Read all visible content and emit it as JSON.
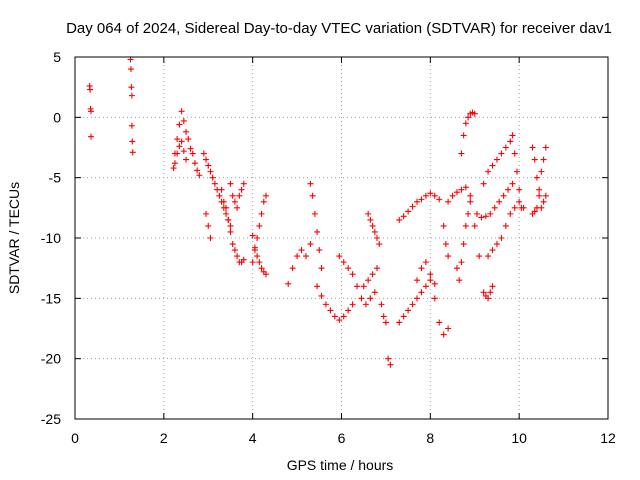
{
  "chart_data": {
    "type": "scatter",
    "title": "Day 064 of 2024, Sidereal Day-to-day VTEC variation (SDTVAR) for receiver dav1",
    "xlabel": "GPS time / hours",
    "ylabel": "SDTVAR / TECUs",
    "xlim": [
      0,
      12
    ],
    "ylim": [
      -25,
      5
    ],
    "xticks": [
      0,
      2,
      4,
      6,
      8,
      10,
      12
    ],
    "yticks": [
      5,
      0,
      -5,
      -10,
      -15,
      -20,
      -25
    ],
    "xtick_labels": [
      "0",
      "2",
      "4",
      "6",
      "8",
      "10",
      "12"
    ],
    "ytick_labels": [
      "5",
      "0",
      "-5",
      "-10",
      "-15",
      "-20",
      "-25"
    ],
    "grid": true,
    "marker": "plus",
    "color": "#ff0000",
    "series": [
      {
        "name": "s1",
        "x": [
          0.33,
          0.34,
          0.35,
          0.36,
          0.36
        ],
        "y": [
          2.6,
          2.3,
          0.7,
          0.5,
          -1.6
        ]
      },
      {
        "name": "s2",
        "x": [
          1.25,
          1.26,
          1.27,
          1.28,
          1.28,
          1.29,
          1.3
        ],
        "y": [
          4.8,
          4.0,
          2.5,
          1.8,
          -0.7,
          -2.0,
          -2.9
        ]
      },
      {
        "name": "s3",
        "x": [
          2.22,
          2.25,
          2.3,
          2.35,
          2.4,
          2.45,
          2.5,
          2.55,
          2.6,
          2.65,
          2.7,
          2.75,
          2.8
        ],
        "y": [
          -4.2,
          -3.0,
          -1.8,
          -0.6,
          0.5,
          -0.3,
          -1.2,
          -1.8,
          -2.6,
          -3.0,
          -3.8,
          -4.4,
          -4.8
        ]
      },
      {
        "name": "s4",
        "x": [
          2.25,
          2.3,
          2.35,
          2.4,
          2.45,
          2.5
        ],
        "y": [
          -3.8,
          -3.0,
          -2.4,
          -2.0,
          -2.8,
          -3.5
        ]
      },
      {
        "name": "s5",
        "x": [
          2.9,
          2.95,
          3.0,
          3.05,
          3.1,
          3.15,
          3.2,
          3.25,
          3.3,
          3.35,
          3.4,
          3.45,
          3.5
        ],
        "y": [
          -3.0,
          -3.5,
          -4.0,
          -4.5,
          -5.0,
          -5.5,
          -6.0,
          -6.5,
          -7.0,
          -7.5,
          -8.0,
          -8.5,
          -9.0
        ]
      },
      {
        "name": "s6",
        "x": [
          2.95,
          3.0,
          3.05
        ],
        "y": [
          -8.0,
          -9.0,
          -10.0
        ]
      },
      {
        "name": "s7",
        "x": [
          3.3,
          3.35,
          3.4,
          3.45,
          3.5,
          3.55,
          3.6,
          3.65,
          3.7,
          3.75,
          3.8
        ],
        "y": [
          -6.0,
          -7.0,
          -7.5,
          -8.5,
          -9.5,
          -10.5,
          -11.0,
          -11.5,
          -12.0,
          -12.0,
          -11.8
        ]
      },
      {
        "name": "s8",
        "x": [
          3.5,
          3.55,
          3.6,
          3.65,
          3.7,
          3.75,
          3.8
        ],
        "y": [
          -5.5,
          -6.5,
          -7.0,
          -7.5,
          -6.5,
          -6.0,
          -5.5
        ]
      },
      {
        "name": "s9",
        "x": [
          4.0,
          4.05,
          4.1,
          4.15,
          4.2,
          4.25,
          4.3
        ],
        "y": [
          -12.0,
          -11.0,
          -10.0,
          -9.0,
          -8.0,
          -7.0,
          -6.5
        ]
      },
      {
        "name": "s10",
        "x": [
          4.0,
          4.05,
          4.1,
          4.15,
          4.2,
          4.25,
          4.3
        ],
        "y": [
          -9.8,
          -10.8,
          -11.5,
          -12.0,
          -12.5,
          -12.8,
          -13.0
        ]
      },
      {
        "name": "s11",
        "x": [
          4.8,
          4.9,
          5.0,
          5.1,
          5.2,
          5.3
        ],
        "y": [
          -13.8,
          -12.5,
          -11.5,
          -11.0,
          -11.5,
          -10.5
        ]
      },
      {
        "name": "s12",
        "x": [
          5.3,
          5.35,
          5.4,
          5.45,
          5.5,
          5.55
        ],
        "y": [
          -5.5,
          -6.5,
          -8.0,
          -9.5,
          -11.0,
          -12.5
        ]
      },
      {
        "name": "s13",
        "x": [
          5.45,
          5.55,
          5.65,
          5.75,
          5.85,
          5.95,
          6.05,
          6.15,
          6.25
        ],
        "y": [
          -14.0,
          -14.8,
          -15.5,
          -16.0,
          -16.5,
          -16.8,
          -16.5,
          -16.0,
          -15.5
        ]
      },
      {
        "name": "s14",
        "x": [
          5.95,
          6.05,
          6.15,
          6.25,
          6.35,
          6.45,
          6.55,
          6.65,
          6.75
        ],
        "y": [
          -11.5,
          -12.0,
          -12.5,
          -13.0,
          -14.0,
          -15.0,
          -15.5,
          -15.0,
          -14.5
        ]
      },
      {
        "name": "s15",
        "x": [
          6.5,
          6.6,
          6.7,
          6.8
        ],
        "y": [
          -14.0,
          -13.5,
          -13.0,
          -12.5
        ]
      },
      {
        "name": "s16",
        "x": [
          6.6,
          6.65,
          6.7,
          6.75,
          6.8,
          6.85
        ],
        "y": [
          -8.0,
          -8.5,
          -9.0,
          -9.5,
          -10.0,
          -10.5
        ]
      },
      {
        "name": "s17",
        "x": [
          7.05,
          7.1
        ],
        "y": [
          -20.0,
          -20.5
        ]
      },
      {
        "name": "s18",
        "x": [
          6.9,
          6.95,
          7.0
        ],
        "y": [
          -15.5,
          -16.5,
          -17.0
        ]
      },
      {
        "name": "s19",
        "x": [
          7.3,
          7.4,
          7.5,
          7.6,
          7.7,
          7.8,
          7.9,
          8.0,
          8.1,
          8.2
        ],
        "y": [
          -8.5,
          -8.2,
          -7.8,
          -7.4,
          -7.0,
          -6.8,
          -6.5,
          -6.3,
          -6.5,
          -6.8
        ]
      },
      {
        "name": "s20",
        "x": [
          7.3,
          7.4,
          7.5,
          7.6,
          7.7,
          7.8,
          7.9,
          8.0,
          8.1
        ],
        "y": [
          -17.0,
          -16.5,
          -16.0,
          -15.5,
          -15.0,
          -14.5,
          -14.0,
          -13.5,
          -13.8
        ]
      },
      {
        "name": "s21",
        "x": [
          7.7,
          7.8,
          7.9,
          8.0,
          8.1,
          8.2,
          8.3,
          8.4
        ],
        "y": [
          -13.5,
          -12.5,
          -12.0,
          -13.0,
          -15.0,
          -17.0,
          -18.0,
          -17.5
        ]
      },
      {
        "name": "s22",
        "x": [
          8.3,
          8.35,
          8.4
        ],
        "y": [
          -9.0,
          -10.5,
          -11.5
        ]
      },
      {
        "name": "s23",
        "x": [
          8.4,
          8.5,
          8.6,
          8.7,
          8.8,
          8.9,
          9.0,
          9.1
        ],
        "y": [
          -7.0,
          -6.5,
          -6.2,
          -6.0,
          -5.8,
          -6.5,
          -9.0,
          -11.5
        ]
      },
      {
        "name": "s24",
        "x": [
          8.6,
          8.65,
          8.7,
          8.75,
          8.8,
          8.85,
          8.9
        ],
        "y": [
          -12.5,
          -13.5,
          -12.0,
          -10.5,
          -9.0,
          -8.0,
          -7.0
        ]
      },
      {
        "name": "s25",
        "x": [
          8.7,
          8.75,
          8.8,
          8.85,
          8.9,
          8.95,
          9.0
        ],
        "y": [
          -3.0,
          -1.5,
          -0.5,
          0.0,
          0.3,
          0.4,
          0.3
        ]
      },
      {
        "name": "s26",
        "x": [
          9.05,
          9.15,
          9.25,
          9.35,
          9.45,
          9.55,
          9.65,
          9.75,
          9.85
        ],
        "y": [
          -8.0,
          -8.3,
          -8.2,
          -8.0,
          -7.5,
          -7.0,
          -6.5,
          -6.0,
          -5.5
        ]
      },
      {
        "name": "s27",
        "x": [
          9.2,
          9.3,
          9.4,
          9.5,
          9.6,
          9.7,
          9.8
        ],
        "y": [
          -5.5,
          -4.5,
          -4.0,
          -3.5,
          -3.0,
          -2.5,
          -2.0
        ]
      },
      {
        "name": "s28",
        "x": [
          9.3,
          9.4,
          9.5,
          9.6,
          9.7,
          9.8,
          9.9,
          10.0,
          10.1
        ],
        "y": [
          -11.5,
          -11.0,
          -10.5,
          -10.0,
          -9.0,
          -8.0,
          -7.5,
          -7.0,
          -7.5
        ]
      },
      {
        "name": "s29",
        "x": [
          9.2,
          9.25,
          9.3,
          9.35,
          9.4
        ],
        "y": [
          -14.5,
          -14.8,
          -15.0,
          -14.5,
          -14.0
        ]
      },
      {
        "name": "s30",
        "x": [
          9.85,
          9.9,
          9.95,
          10.0,
          10.05
        ],
        "y": [
          -1.5,
          -3.0,
          -4.5,
          -6.0,
          -7.5
        ]
      },
      {
        "name": "s31",
        "x": [
          10.3,
          10.35,
          10.4,
          10.45,
          10.5,
          10.55,
          10.6
        ],
        "y": [
          -2.5,
          -3.5,
          -5.0,
          -6.5,
          -7.5,
          -7.0,
          -6.5
        ]
      },
      {
        "name": "s32",
        "x": [
          10.3,
          10.35,
          10.4,
          10.45,
          10.5,
          10.55,
          10.6
        ],
        "y": [
          -8.0,
          -7.8,
          -7.5,
          -6.0,
          -4.5,
          -3.5,
          -2.5
        ]
      }
    ]
  }
}
